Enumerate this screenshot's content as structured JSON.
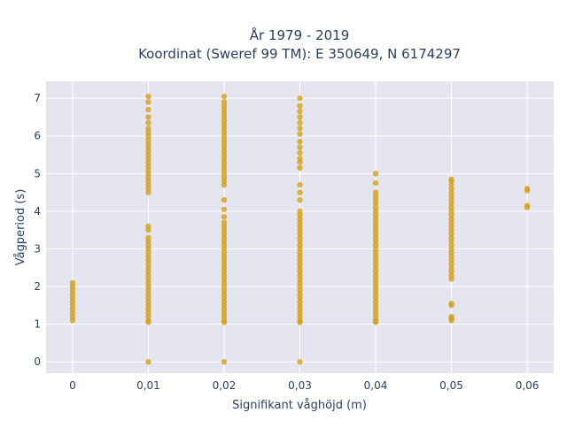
{
  "chart_data": {
    "type": "scatter",
    "title_line1": "År 1979 - 2019",
    "title_line2": "Koordinat (Sweref 99 TM): E 350649, N 6174297",
    "xlabel": "Signifikant våghöjd (m)",
    "ylabel": "Vågperiod (s)",
    "x_ticks": [
      "0",
      "0,01",
      "0,02",
      "0,03",
      "0,04",
      "0,05",
      "0,06"
    ],
    "y_ticks": [
      "0",
      "1",
      "2",
      "3",
      "4",
      "5",
      "6",
      "7"
    ],
    "xlim": [
      -0.0035,
      0.0635
    ],
    "ylim": [
      -0.3,
      7.45
    ],
    "grid": true,
    "background": "#e5e5f0",
    "point_color": "#d4a017",
    "clusters": [
      {
        "x": 0.0,
        "values": [
          1.1,
          1.2,
          1.3,
          1.4,
          1.5,
          1.6,
          1.7,
          1.8,
          1.9,
          2.0,
          2.1
        ]
      },
      {
        "x": 0.01,
        "values": [
          0,
          1.05,
          1.1,
          1.2,
          1.3,
          1.4,
          1.5,
          1.6,
          1.7,
          1.8,
          1.9,
          2.0,
          2.1,
          2.2,
          2.3,
          2.4,
          2.5,
          2.6,
          2.7,
          2.8,
          2.9,
          3.0,
          3.1,
          3.2,
          3.3,
          3.5,
          3.6,
          4.5,
          4.6,
          4.7,
          4.8,
          4.9,
          5.0,
          5.1,
          5.2,
          5.3,
          5.4,
          5.5,
          5.6,
          5.7,
          5.8,
          5.9,
          6.0,
          6.1,
          6.2,
          6.35,
          6.5,
          6.7,
          6.9,
          7.05
        ]
      },
      {
        "x": 0.02,
        "values": [
          0,
          1.05,
          1.1,
          1.2,
          1.3,
          1.4,
          1.5,
          1.6,
          1.7,
          1.8,
          1.9,
          2.0,
          2.1,
          2.2,
          2.3,
          2.4,
          2.5,
          2.6,
          2.7,
          2.8,
          2.9,
          3.0,
          3.1,
          3.2,
          3.3,
          3.4,
          3.5,
          3.6,
          3.7,
          3.85,
          4.05,
          4.3,
          4.7,
          4.8,
          4.9,
          5.0,
          5.1,
          5.2,
          5.3,
          5.4,
          5.5,
          5.6,
          5.7,
          5.8,
          5.9,
          6.0,
          6.1,
          6.2,
          6.3,
          6.4,
          6.5,
          6.6,
          6.7,
          6.8,
          6.9,
          7.05
        ]
      },
      {
        "x": 0.03,
        "values": [
          0,
          1.05,
          1.1,
          1.2,
          1.3,
          1.4,
          1.5,
          1.6,
          1.7,
          1.8,
          1.9,
          2.0,
          2.1,
          2.2,
          2.3,
          2.4,
          2.5,
          2.6,
          2.7,
          2.8,
          2.9,
          3.0,
          3.1,
          3.2,
          3.3,
          3.4,
          3.5,
          3.6,
          3.7,
          3.8,
          3.9,
          4.0,
          4.3,
          4.5,
          4.7,
          5.15,
          5.3,
          5.4,
          5.55,
          5.7,
          5.85,
          6.05,
          6.2,
          6.35,
          6.5,
          6.65,
          6.8,
          7.0
        ]
      },
      {
        "x": 0.04,
        "values": [
          1.05,
          1.1,
          1.2,
          1.3,
          1.4,
          1.5,
          1.6,
          1.7,
          1.8,
          1.9,
          2.0,
          2.1,
          2.2,
          2.3,
          2.4,
          2.5,
          2.6,
          2.7,
          2.8,
          2.9,
          3.0,
          3.1,
          3.2,
          3.3,
          3.4,
          3.5,
          3.6,
          3.7,
          3.8,
          3.9,
          4.0,
          4.1,
          4.2,
          4.3,
          4.4,
          4.5,
          4.75,
          5.0
        ]
      },
      {
        "x": 0.05,
        "values": [
          1.1,
          1.15,
          1.2,
          1.5,
          1.55,
          2.2,
          2.3,
          2.4,
          2.5,
          2.6,
          2.7,
          2.8,
          2.9,
          3.0,
          3.1,
          3.2,
          3.3,
          3.4,
          3.5,
          3.6,
          3.7,
          3.8,
          3.9,
          4.0,
          4.1,
          4.2,
          4.3,
          4.4,
          4.5,
          4.6,
          4.7,
          4.8,
          4.85
        ]
      },
      {
        "x": 0.06,
        "values": [
          4.1,
          4.15,
          4.55,
          4.6
        ]
      }
    ]
  }
}
